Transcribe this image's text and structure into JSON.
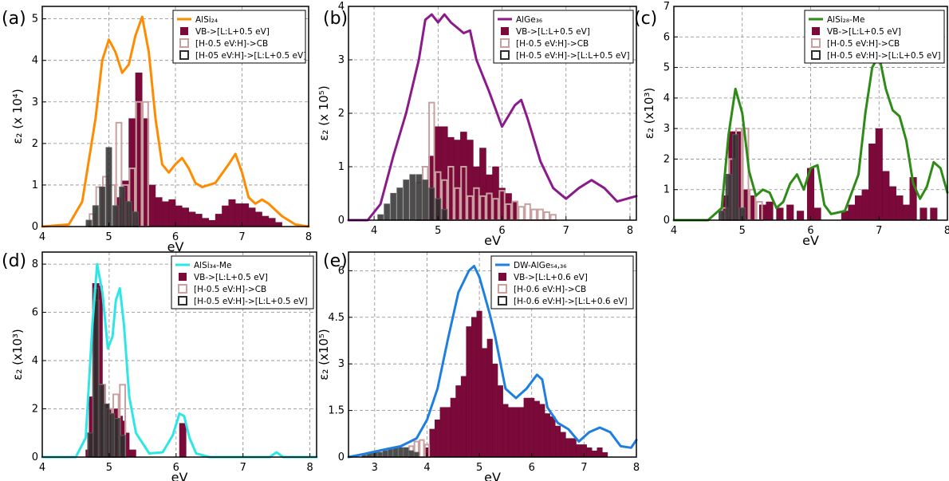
{
  "chart_data": [
    {
      "panel_label": "(a)",
      "type": "line+bar",
      "xlabel": "eV",
      "ylabel": "ε₂ (x 10⁴)",
      "xlim": [
        4,
        8
      ],
      "ylim": [
        0,
        5.3
      ],
      "xticks": [
        4,
        5,
        6,
        7,
        8
      ],
      "yticks": [
        0,
        1,
        2,
        3,
        4,
        5
      ],
      "grid": true,
      "legend_position": "top-right",
      "legend": [
        {
          "label": "AlSi₂₄",
          "kind": "line",
          "color": "#ff8c00"
        },
        {
          "label": "VB->[L:L+0.5 eV]",
          "kind": "filled",
          "color": "#7b0a3a"
        },
        {
          "label": "[H-0.5 eV:H]->CB",
          "kind": "open",
          "color": "#c8a0a0"
        },
        {
          "label": "[H-05 eV:H]->[L:L+0.5 eV]",
          "kind": "open",
          "color": "#2e2e2e"
        }
      ],
      "curve": {
        "x": [
          4.0,
          4.4,
          4.6,
          4.8,
          4.9,
          5.0,
          5.1,
          5.2,
          5.3,
          5.4,
          5.5,
          5.6,
          5.7,
          5.8,
          5.9,
          6.0,
          6.1,
          6.2,
          6.3,
          6.4,
          6.6,
          6.8,
          6.9,
          7.0,
          7.1,
          7.2,
          7.3,
          7.4,
          7.6,
          7.8,
          8.0
        ],
        "y": [
          0,
          0.05,
          0.6,
          2.6,
          4.0,
          4.5,
          4.2,
          3.7,
          3.9,
          4.6,
          5.05,
          4.2,
          2.6,
          1.5,
          1.3,
          1.5,
          1.65,
          1.4,
          1.05,
          0.95,
          1.05,
          1.5,
          1.75,
          1.3,
          0.7,
          0.55,
          0.65,
          0.55,
          0.25,
          0.05,
          0
        ]
      },
      "bars_vb": {
        "x": [
          5.15,
          5.25,
          5.35,
          5.45,
          5.55,
          5.65,
          5.75,
          5.85,
          5.95,
          6.05,
          6.15,
          6.25,
          6.35,
          6.45,
          6.55,
          6.65,
          6.75,
          6.85,
          6.95,
          7.05,
          7.15,
          7.25,
          7.35,
          7.45,
          7.55
        ],
        "y": [
          0.7,
          1.1,
          2.6,
          3.7,
          2.6,
          1.0,
          0.7,
          0.6,
          0.65,
          0.5,
          0.45,
          0.35,
          0.3,
          0.2,
          0.15,
          0.3,
          0.5,
          0.65,
          0.55,
          0.55,
          0.45,
          0.35,
          0.25,
          0.2,
          0.1
        ]
      },
      "bars_hcb": {
        "x": [
          4.75,
          4.85,
          4.95,
          5.05,
          5.15,
          5.25,
          5.35,
          5.45,
          5.55
        ],
        "y": [
          0.3,
          0.95,
          1.2,
          1.0,
          2.5,
          1.0,
          1.4,
          3.0,
          3.0
        ]
      },
      "bars_hl": {
        "x": [
          4.7,
          4.8,
          4.9,
          5.0,
          5.1,
          5.2,
          5.3,
          5.4
        ],
        "y": [
          0.15,
          0.5,
          0.95,
          1.9,
          0.5,
          0.95,
          0.6,
          0.35
        ]
      }
    },
    {
      "panel_label": "(b)",
      "type": "line+bar",
      "xlabel": "eV",
      "ylabel": "ε₂ (x 10⁵)",
      "xlim": [
        3.6,
        8.1
      ],
      "ylim": [
        0,
        4
      ],
      "xticks": [
        4,
        5,
        6,
        7,
        8
      ],
      "yticks": [
        0,
        1,
        2,
        3,
        4
      ],
      "grid": true,
      "legend_position": "top-right",
      "legend": [
        {
          "label": "AlGe₃₆",
          "kind": "line",
          "color": "#8b1a8b"
        },
        {
          "label": "VB->[L:L+0.5 eV]",
          "kind": "filled",
          "color": "#7b0a3a"
        },
        {
          "label": "[H-0.5 eV:H]->CB",
          "kind": "open",
          "color": "#c8a0a0"
        },
        {
          "label": "[H-0.5 eV:H]->[L:L+0.5 eV]",
          "kind": "open",
          "color": "#2e2e2e"
        }
      ],
      "curve": {
        "x": [
          3.6,
          3.9,
          4.1,
          4.3,
          4.5,
          4.7,
          4.8,
          4.9,
          5.0,
          5.1,
          5.2,
          5.4,
          5.5,
          5.6,
          5.8,
          6.0,
          6.2,
          6.3,
          6.4,
          6.6,
          6.8,
          7.0,
          7.2,
          7.4,
          7.6,
          7.8,
          8.1
        ],
        "y": [
          0,
          0,
          0.3,
          1.2,
          2.0,
          3.0,
          3.75,
          3.85,
          3.7,
          3.85,
          3.7,
          3.5,
          3.55,
          3.0,
          2.4,
          1.75,
          2.15,
          2.25,
          1.9,
          1.1,
          0.6,
          0.4,
          0.6,
          0.75,
          0.6,
          0.35,
          0.45
        ]
      },
      "bars_vb": {
        "x": [
          4.9,
          5.0,
          5.1,
          5.2,
          5.3,
          5.4,
          5.5,
          5.6,
          5.7,
          5.8,
          5.9,
          6.0,
          6.1,
          6.2
        ],
        "y": [
          1.2,
          1.75,
          1.75,
          1.55,
          1.5,
          1.65,
          1.5,
          1.0,
          1.35,
          0.85,
          1.0,
          0.6,
          0.5,
          0.35
        ]
      },
      "bars_hcb": {
        "x": [
          4.7,
          4.8,
          4.9,
          5.0,
          5.1,
          5.2,
          5.3,
          5.4,
          5.5,
          5.6,
          5.7,
          5.8,
          5.9,
          6.0,
          6.1,
          6.2,
          6.3,
          6.4,
          6.5,
          6.6,
          6.7,
          6.8
        ],
        "y": [
          0.7,
          1.0,
          2.2,
          0.9,
          0.75,
          1.0,
          0.6,
          1.0,
          0.45,
          0.6,
          0.45,
          0.5,
          0.4,
          0.55,
          0.3,
          0.35,
          0.25,
          0.3,
          0.2,
          0.2,
          0.15,
          0.1
        ]
      },
      "bars_hl": {
        "x": [
          4.1,
          4.2,
          4.3,
          4.4,
          4.5,
          4.6,
          4.7,
          4.8,
          4.9,
          5.0,
          5.1
        ],
        "y": [
          0.1,
          0.3,
          0.5,
          0.6,
          0.75,
          0.85,
          0.85,
          0.75,
          0.6,
          0.4,
          0.2
        ]
      }
    },
    {
      "panel_label": "(c)",
      "type": "line+bar",
      "xlabel": "eV",
      "ylabel": "ε₂ (x10³)",
      "xlim": [
        4,
        8
      ],
      "ylim": [
        0,
        7
      ],
      "xticks": [
        4,
        5,
        6,
        7,
        8
      ],
      "yticks": [
        0,
        1,
        2,
        3,
        4,
        5,
        6,
        7
      ],
      "grid": true,
      "legend_position": "top-right",
      "legend": [
        {
          "label": "AlSi₂₈-Me",
          "kind": "line",
          "color": "#2e8b17"
        },
        {
          "label": "VB->[L:L+0.5 eV]",
          "kind": "filled",
          "color": "#7b0a3a"
        },
        {
          "label": "[H-0.5 eV:H]->CB",
          "kind": "open",
          "color": "#c8a0a0"
        },
        {
          "label": "[H-0.5 eV:H]->[L:L+0.5 eV]",
          "kind": "open",
          "color": "#2e2e2e"
        }
      ],
      "curve": {
        "x": [
          4.0,
          4.5,
          4.7,
          4.8,
          4.9,
          5.0,
          5.1,
          5.2,
          5.3,
          5.4,
          5.5,
          5.6,
          5.7,
          5.8,
          5.9,
          6.0,
          6.1,
          6.2,
          6.3,
          6.5,
          6.7,
          6.8,
          6.9,
          7.0,
          7.1,
          7.2,
          7.3,
          7.4,
          7.5,
          7.6,
          7.7,
          7.8,
          7.9,
          8.0
        ],
        "y": [
          0,
          0,
          0.4,
          2.8,
          4.3,
          3.5,
          1.6,
          0.8,
          1.0,
          0.9,
          0.4,
          0.6,
          1.2,
          1.5,
          1.0,
          1.7,
          1.8,
          0.5,
          0.2,
          0.3,
          1.5,
          3.5,
          5.0,
          5.4,
          4.3,
          3.6,
          3.4,
          2.6,
          1.2,
          0.7,
          1.1,
          1.9,
          1.7,
          0.9
        ]
      },
      "bars_vb": {
        "x": [
          4.75,
          4.85,
          4.95,
          5.05,
          5.15,
          5.3,
          5.4,
          5.55,
          5.7,
          5.85,
          6.0,
          6.1,
          6.5,
          6.6,
          6.7,
          6.8,
          6.9,
          7.0,
          7.1,
          7.2,
          7.3,
          7.4,
          7.5,
          7.65,
          7.8
        ],
        "y": [
          0.8,
          2.9,
          2.9,
          1.0,
          0.8,
          0.5,
          0.6,
          0.4,
          0.5,
          0.3,
          1.7,
          0.4,
          0.3,
          0.5,
          0.8,
          1.0,
          2.5,
          3.0,
          1.6,
          1.1,
          0.8,
          0.5,
          1.4,
          0.4,
          0.4
        ]
      },
      "bars_hcb": {
        "x": [
          4.75,
          4.85,
          4.95,
          5.05,
          5.15,
          5.25
        ],
        "y": [
          0.4,
          2.0,
          3.0,
          3.0,
          1.0,
          0.6
        ]
      },
      "bars_hl": {
        "x": [
          4.7,
          4.8,
          4.9,
          5.0
        ],
        "y": [
          0.3,
          1.5,
          2.8,
          0.4
        ]
      }
    },
    {
      "panel_label": "(d)",
      "type": "line+bar",
      "xlabel": "eV",
      "ylabel": "ε₂ (x10³)",
      "xlim": [
        4,
        8.1
      ],
      "ylim": [
        0,
        8.5
      ],
      "xticks": [
        4,
        5,
        6,
        7,
        8
      ],
      "yticks": [
        0,
        2,
        4,
        6,
        8
      ],
      "grid": true,
      "legend_position": "top-right",
      "legend": [
        {
          "label": "AlSi₃₄-Me",
          "kind": "line",
          "color": "#2ee6e6"
        },
        {
          "label": "VB->[L:L+0.5 eV]",
          "kind": "filled",
          "color": "#7b0a3a"
        },
        {
          "label": "[H-0.5 eV:H]->CB",
          "kind": "open",
          "color": "#c8a0a0"
        },
        {
          "label": "[H-0.5 eV:H]->[L:L+0.5 eV]",
          "kind": "open",
          "color": "#2e2e2e"
        }
      ],
      "curve": {
        "x": [
          4.0,
          4.5,
          4.65,
          4.75,
          4.82,
          4.9,
          4.98,
          5.05,
          5.1,
          5.16,
          5.22,
          5.3,
          5.4,
          5.6,
          5.8,
          5.95,
          6.05,
          6.12,
          6.2,
          6.3,
          6.5,
          7.0,
          7.4,
          7.5,
          7.6,
          8.1
        ],
        "y": [
          0,
          0,
          0.8,
          5.5,
          8.0,
          6.8,
          4.5,
          5.0,
          6.5,
          7.0,
          5.5,
          2.5,
          1.0,
          0.15,
          0.2,
          0.9,
          1.8,
          1.7,
          0.8,
          0.15,
          0,
          0,
          0,
          0.2,
          0,
          0
        ]
      },
      "bars_vb": {
        "x": [
          4.7,
          4.75,
          4.8,
          4.85,
          4.9,
          4.95,
          5.0,
          5.05,
          5.1,
          5.15,
          5.2,
          5.25,
          5.35,
          6.1
        ],
        "y": [
          0.3,
          2.5,
          7.2,
          7.1,
          3.0,
          2.2,
          2.0,
          1.9,
          2.0,
          1.7,
          1.5,
          1.0,
          0.3,
          1.4
        ]
      },
      "bars_hcb": {
        "x": [
          4.8,
          4.9,
          5.0,
          5.1,
          5.2
        ],
        "y": [
          6.5,
          3.0,
          2.0,
          2.6,
          3.0
        ]
      },
      "bars_hl": {
        "x": [
          4.72,
          4.8,
          4.88,
          4.96,
          5.04,
          5.12,
          5.2
        ],
        "y": [
          1.0,
          7.0,
          3.0,
          2.2,
          1.8,
          1.6,
          0.9
        ]
      }
    },
    {
      "panel_label": "(e)",
      "type": "line+bar",
      "xlabel": "eV",
      "ylabel": "ε₂ (x10⁵)",
      "xlim": [
        2.5,
        8
      ],
      "ylim": [
        0,
        6.6
      ],
      "xticks": [
        3,
        4,
        5,
        6,
        7,
        8
      ],
      "yticks": [
        0,
        1.5,
        3,
        4.5,
        6
      ],
      "grid": true,
      "legend_position": "top-right",
      "legend": [
        {
          "label": "DW-AlGe₅₄,₃₆",
          "kind": "line",
          "color": "#1e7fe0"
        },
        {
          "label": "VB->[L:L+0.6 eV]",
          "kind": "filled",
          "color": "#7b0a3a"
        },
        {
          "label": "[H-0.6 eV:H]->CB",
          "kind": "open",
          "color": "#c8a0a0"
        },
        {
          "label": "[H-0.6 eV:H]->[L:L+0.6 eV]",
          "kind": "open",
          "color": "#2e2e2e"
        }
      ],
      "curve": {
        "x": [
          2.5,
          2.8,
          3.2,
          3.5,
          3.8,
          4.0,
          4.2,
          4.4,
          4.6,
          4.8,
          4.9,
          5.0,
          5.1,
          5.2,
          5.3,
          5.5,
          5.7,
          5.9,
          6.1,
          6.2,
          6.3,
          6.5,
          6.7,
          6.9,
          7.1,
          7.3,
          7.5,
          7.7,
          7.9,
          8.0
        ],
        "y": [
          0,
          0.1,
          0.25,
          0.35,
          0.6,
          1.2,
          2.2,
          3.8,
          5.3,
          6.0,
          6.15,
          5.8,
          5.2,
          4.6,
          3.9,
          2.2,
          1.9,
          2.2,
          2.65,
          2.5,
          1.6,
          1.1,
          0.9,
          0.5,
          0.8,
          0.95,
          0.8,
          0.35,
          0.3,
          0.55
        ]
      },
      "bars_vb": {
        "x": [
          4.0,
          4.1,
          4.2,
          4.3,
          4.4,
          4.5,
          4.6,
          4.7,
          4.8,
          4.9,
          5.0,
          5.1,
          5.2,
          5.3,
          5.4,
          5.5,
          5.6,
          5.7,
          5.8,
          5.9,
          6.0,
          6.1,
          6.2,
          6.3,
          6.4,
          6.5,
          6.6,
          6.7,
          6.8,
          6.9,
          7.0,
          7.1,
          7.2,
          7.3,
          7.4
        ],
        "y": [
          0.3,
          0.9,
          1.2,
          1.6,
          1.6,
          1.9,
          2.3,
          2.6,
          4.2,
          4.5,
          4.7,
          3.5,
          3.8,
          3.0,
          2.3,
          1.7,
          1.6,
          1.6,
          1.6,
          1.9,
          1.9,
          1.8,
          1.7,
          1.4,
          1.3,
          1.0,
          0.8,
          0.6,
          0.6,
          0.4,
          0.4,
          0.3,
          0.2,
          0.3,
          0.15
        ]
      },
      "bars_hcb": {
        "x": [
          3.7,
          3.8,
          3.9,
          4.0
        ],
        "y": [
          0.35,
          0.5,
          0.55,
          0.4
        ]
      },
      "bars_hl": {
        "x": [
          2.8,
          2.9,
          3.0,
          3.1,
          3.2,
          3.3,
          3.4,
          3.5,
          3.6,
          3.7,
          3.8
        ],
        "y": [
          0.05,
          0.1,
          0.15,
          0.15,
          0.2,
          0.25,
          0.3,
          0.3,
          0.3,
          0.2,
          0.15
        ]
      }
    }
  ]
}
